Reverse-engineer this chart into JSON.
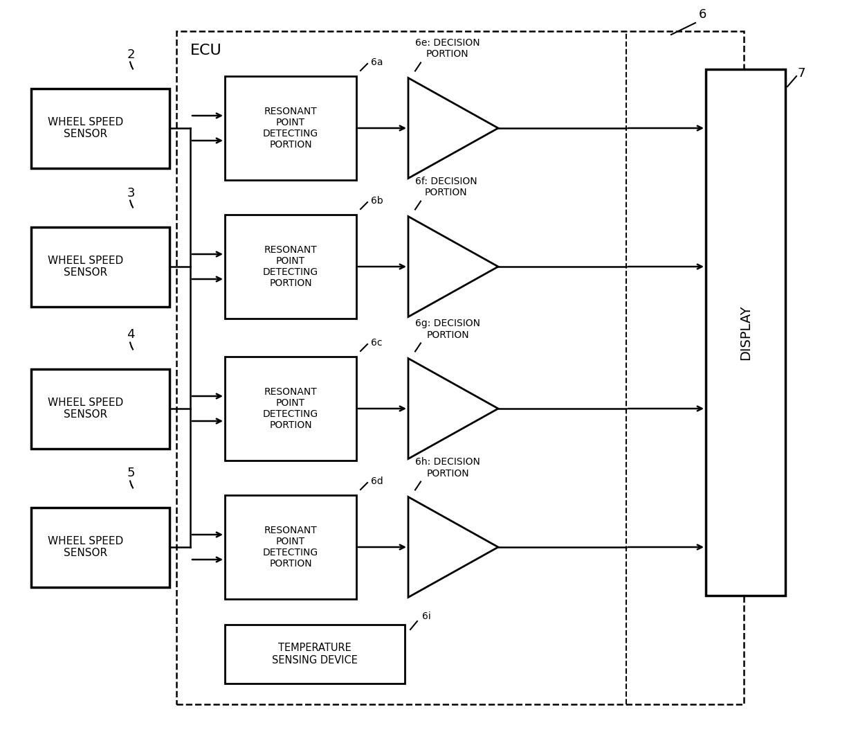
{
  "background_color": "#ffffff",
  "fig_width": 12.4,
  "fig_height": 10.57,
  "sensors": [
    {
      "label": "WHEEL SPEED\nSENSOR",
      "number": "2"
    },
    {
      "label": "WHEEL SPEED\nSENSOR",
      "number": "3"
    },
    {
      "label": "WHEEL SPEED\nSENSOR",
      "number": "4"
    },
    {
      "label": "WHEEL SPEED\nSENSOR",
      "number": "5"
    }
  ],
  "detector_label": "RESONANT\nPOINT\nDETECTING\nPORTION",
  "detector_ids": [
    "6a",
    "6b",
    "6c",
    "6d"
  ],
  "decision_ids": [
    "6e",
    "6f",
    "6g",
    "6h"
  ],
  "temp_label": "TEMPERATURE\nSENSING DEVICE",
  "temp_id": "6i",
  "display_label": "DISPLAY",
  "display_number": "7",
  "ecu_label": "ECU",
  "ecu_number": "6",
  "line_color": "#000000",
  "box_color": "#ffffff",
  "text_color": "#000000"
}
